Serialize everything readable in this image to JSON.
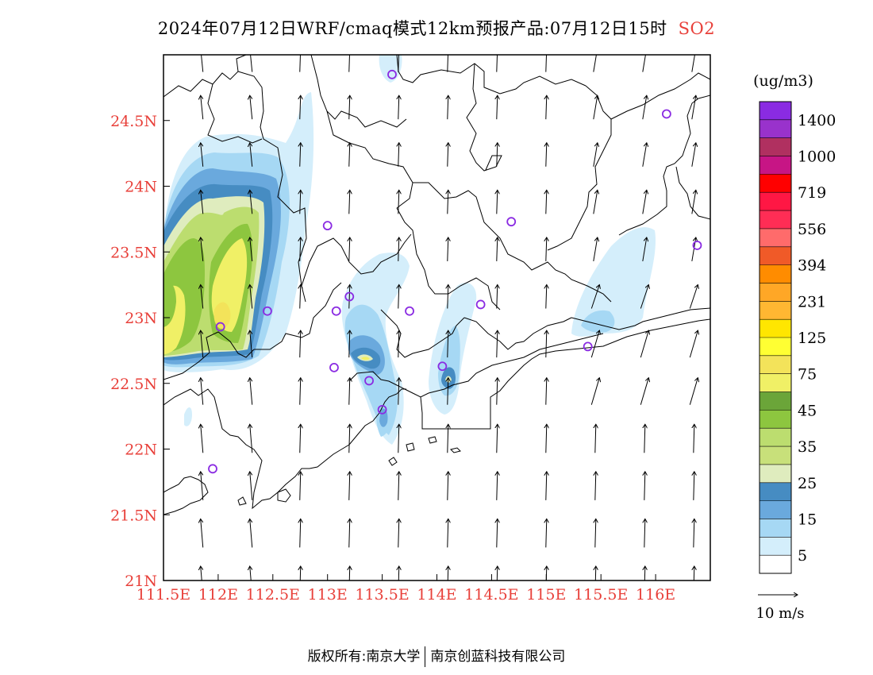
{
  "title": {
    "main": "2024年07月12日WRF/cmaq模式12km预报产品:07月12日15时",
    "pollutant": "SO2"
  },
  "map": {
    "lon_range": [
      111.5,
      116.5
    ],
    "lat_range": [
      21.0,
      25.0
    ],
    "x_ticks": [
      "111.5E",
      "112E",
      "112.5E",
      "113E",
      "113.5E",
      "114E",
      "114.5E",
      "115E",
      "115.5E",
      "116E"
    ],
    "y_ticks": [
      "21N",
      "21.5N",
      "22N",
      "22.5N",
      "23N",
      "23.5N",
      "24N",
      "24.5N"
    ],
    "tick_color": "#e8403a",
    "stations": [
      [
        113.59,
        24.85
      ],
      [
        116.1,
        24.55
      ],
      [
        113.0,
        23.7
      ],
      [
        114.68,
        23.73
      ],
      [
        116.38,
        23.55
      ],
      [
        112.45,
        23.05
      ],
      [
        113.08,
        23.05
      ],
      [
        113.2,
        23.16
      ],
      [
        113.75,
        23.05
      ],
      [
        114.4,
        23.1
      ],
      [
        112.02,
        22.93
      ],
      [
        113.06,
        22.62
      ],
      [
        113.38,
        22.52
      ],
      [
        114.05,
        22.63
      ],
      [
        115.38,
        22.78
      ],
      [
        113.5,
        22.3
      ],
      [
        111.95,
        21.85
      ]
    ],
    "station_color": "#8a2be2"
  },
  "legend": {
    "unit": "(ug/m3)",
    "labels": [
      "1400",
      "1000",
      "719",
      "556",
      "394",
      "231",
      "125",
      "75",
      "45",
      "35",
      "25",
      "15",
      "5"
    ],
    "colors": [
      "#8a2be2",
      "#9932cc",
      "#b03060",
      "#c71585",
      "#ff0000",
      "#ff1744",
      "#ff2d55",
      "#ff6b6b",
      "#f05a28",
      "#ff8c00",
      "#ffa726",
      "#ffb732",
      "#ffe600",
      "#ffff33",
      "#f3e35a",
      "#f0f066",
      "#6ba539",
      "#8dc63f",
      "#bcdd6f",
      "#c8e07a",
      "#dfecbe",
      "#468cc2",
      "#6aa9dd",
      "#a6d8f4",
      "#d4eefb",
      "#ffffff"
    ],
    "wind_ref": "10 m/s"
  },
  "footer": {
    "copyright": "版权所有:南京大学",
    "company": "南京创蓝科技有限公司"
  }
}
